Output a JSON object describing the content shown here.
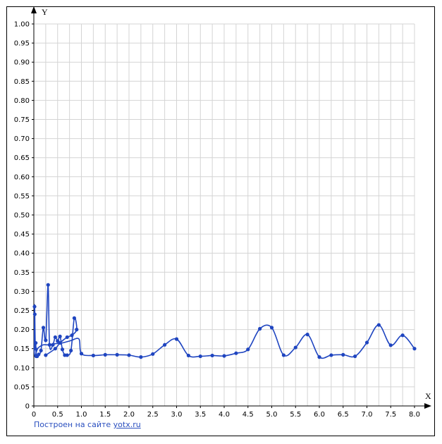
{
  "chart_data": {
    "type": "line",
    "xlabel": "X",
    "ylabel": "Y",
    "xlim": [
      0,
      8.0
    ],
    "ylim": [
      0,
      1.0
    ],
    "x_ticks": [
      "0",
      "0.5",
      "1.0",
      "1.5",
      "2.0",
      "2.5",
      "3.0",
      "3.5",
      "4.0",
      "4.5",
      "5.0",
      "5.5",
      "6.0",
      "6.5",
      "7.0",
      "7.5",
      "8.0"
    ],
    "x_tick_values": [
      0,
      0.5,
      1,
      1.5,
      2,
      2.5,
      3,
      3.5,
      4,
      4.5,
      5,
      5.5,
      6,
      6.5,
      7,
      7.5,
      8
    ],
    "y_ticks": [
      "0",
      "0.05",
      "0.10",
      "0.15",
      "0.20",
      "0.25",
      "0.30",
      "0.35",
      "0.40",
      "0.45",
      "0.50",
      "0.55",
      "0.60",
      "0.65",
      "0.70",
      "0.75",
      "0.80",
      "0.85",
      "0.90",
      "0.95",
      "1.00"
    ],
    "y_tick_values": [
      0,
      0.05,
      0.1,
      0.15,
      0.2,
      0.25,
      0.3,
      0.35,
      0.4,
      0.45,
      0.5,
      0.55,
      0.6,
      0.65,
      0.7,
      0.75,
      0.8,
      0.85,
      0.9,
      0.95,
      1.0
    ],
    "grid": true,
    "series": [
      {
        "color": "#1f45c0",
        "x": [
          0.25,
          0.45,
          0.55,
          0.7,
          0.8,
          0.9,
          0.85,
          0.78,
          0.7,
          0.65,
          0.6,
          0.55,
          0.5,
          0.45,
          0.4,
          0.33,
          0.3,
          0.25,
          0.2,
          0.15,
          0.1,
          0.07,
          0.05,
          0.04,
          0.03,
          0.02,
          0.015,
          0.01,
          0.01,
          0.02,
          0.03,
          0.05,
          0.08,
          0.12,
          0.2,
          0.3,
          0.45,
          0.6,
          0.75,
          0.8,
          0.95,
          1.0,
          1.25,
          1.5,
          1.75,
          2.0,
          2.25,
          2.5,
          2.75,
          3.0,
          3.25,
          3.5,
          3.75,
          4.0,
          4.25,
          4.5,
          4.75,
          5.0,
          5.25,
          5.5,
          5.75,
          6.0,
          6.25,
          6.5,
          6.75,
          7.0,
          7.25,
          7.5,
          7.75,
          8.0
        ],
        "y": [
          0.133,
          0.15,
          0.165,
          0.18,
          0.185,
          0.2,
          0.23,
          0.145,
          0.133,
          0.133,
          0.148,
          0.182,
          0.17,
          0.18,
          0.16,
          0.16,
          0.317,
          0.172,
          0.205,
          0.145,
          0.135,
          0.13,
          0.13,
          0.165,
          0.15,
          0.24,
          0.26,
          0.16,
          0.14,
          0.13,
          0.13,
          0.14,
          0.15,
          0.155,
          0.16,
          0.16,
          0.163,
          0.165,
          0.17,
          0.172,
          0.175,
          0.137,
          0.132,
          0.134,
          0.134,
          0.133,
          0.128,
          0.136,
          0.16,
          0.175,
          0.132,
          0.13,
          0.132,
          0.131,
          0.138,
          0.148,
          0.202,
          0.205,
          0.133,
          0.153,
          0.187,
          0.128,
          0.133,
          0.134,
          0.13,
          0.166,
          0.212,
          0.159,
          0.185,
          0.15
        ],
        "markers": [
          0.25,
          0.45,
          0.55,
          0.7,
          0.8,
          0.9,
          0.85,
          0.78,
          0.7,
          0.65,
          0.6,
          0.55,
          0.5,
          0.45,
          0.4,
          0.33,
          0.3,
          0.25,
          0.2,
          0.15,
          0.1,
          0.07,
          0.05,
          0.04,
          0.03,
          0.02,
          0.015,
          1.0,
          1.25,
          1.5,
          1.75,
          2.0,
          2.25,
          2.5,
          2.75,
          3.0,
          3.25,
          3.5,
          3.75,
          4.0,
          4.25,
          4.5,
          4.75,
          5.0,
          5.25,
          5.5,
          5.75,
          6.0,
          6.25,
          6.5,
          6.75,
          7.0,
          7.25,
          7.5,
          7.75,
          8.0
        ]
      }
    ]
  },
  "credit": {
    "prefix": "Построен на сайте",
    "link": "yotx.ru"
  }
}
